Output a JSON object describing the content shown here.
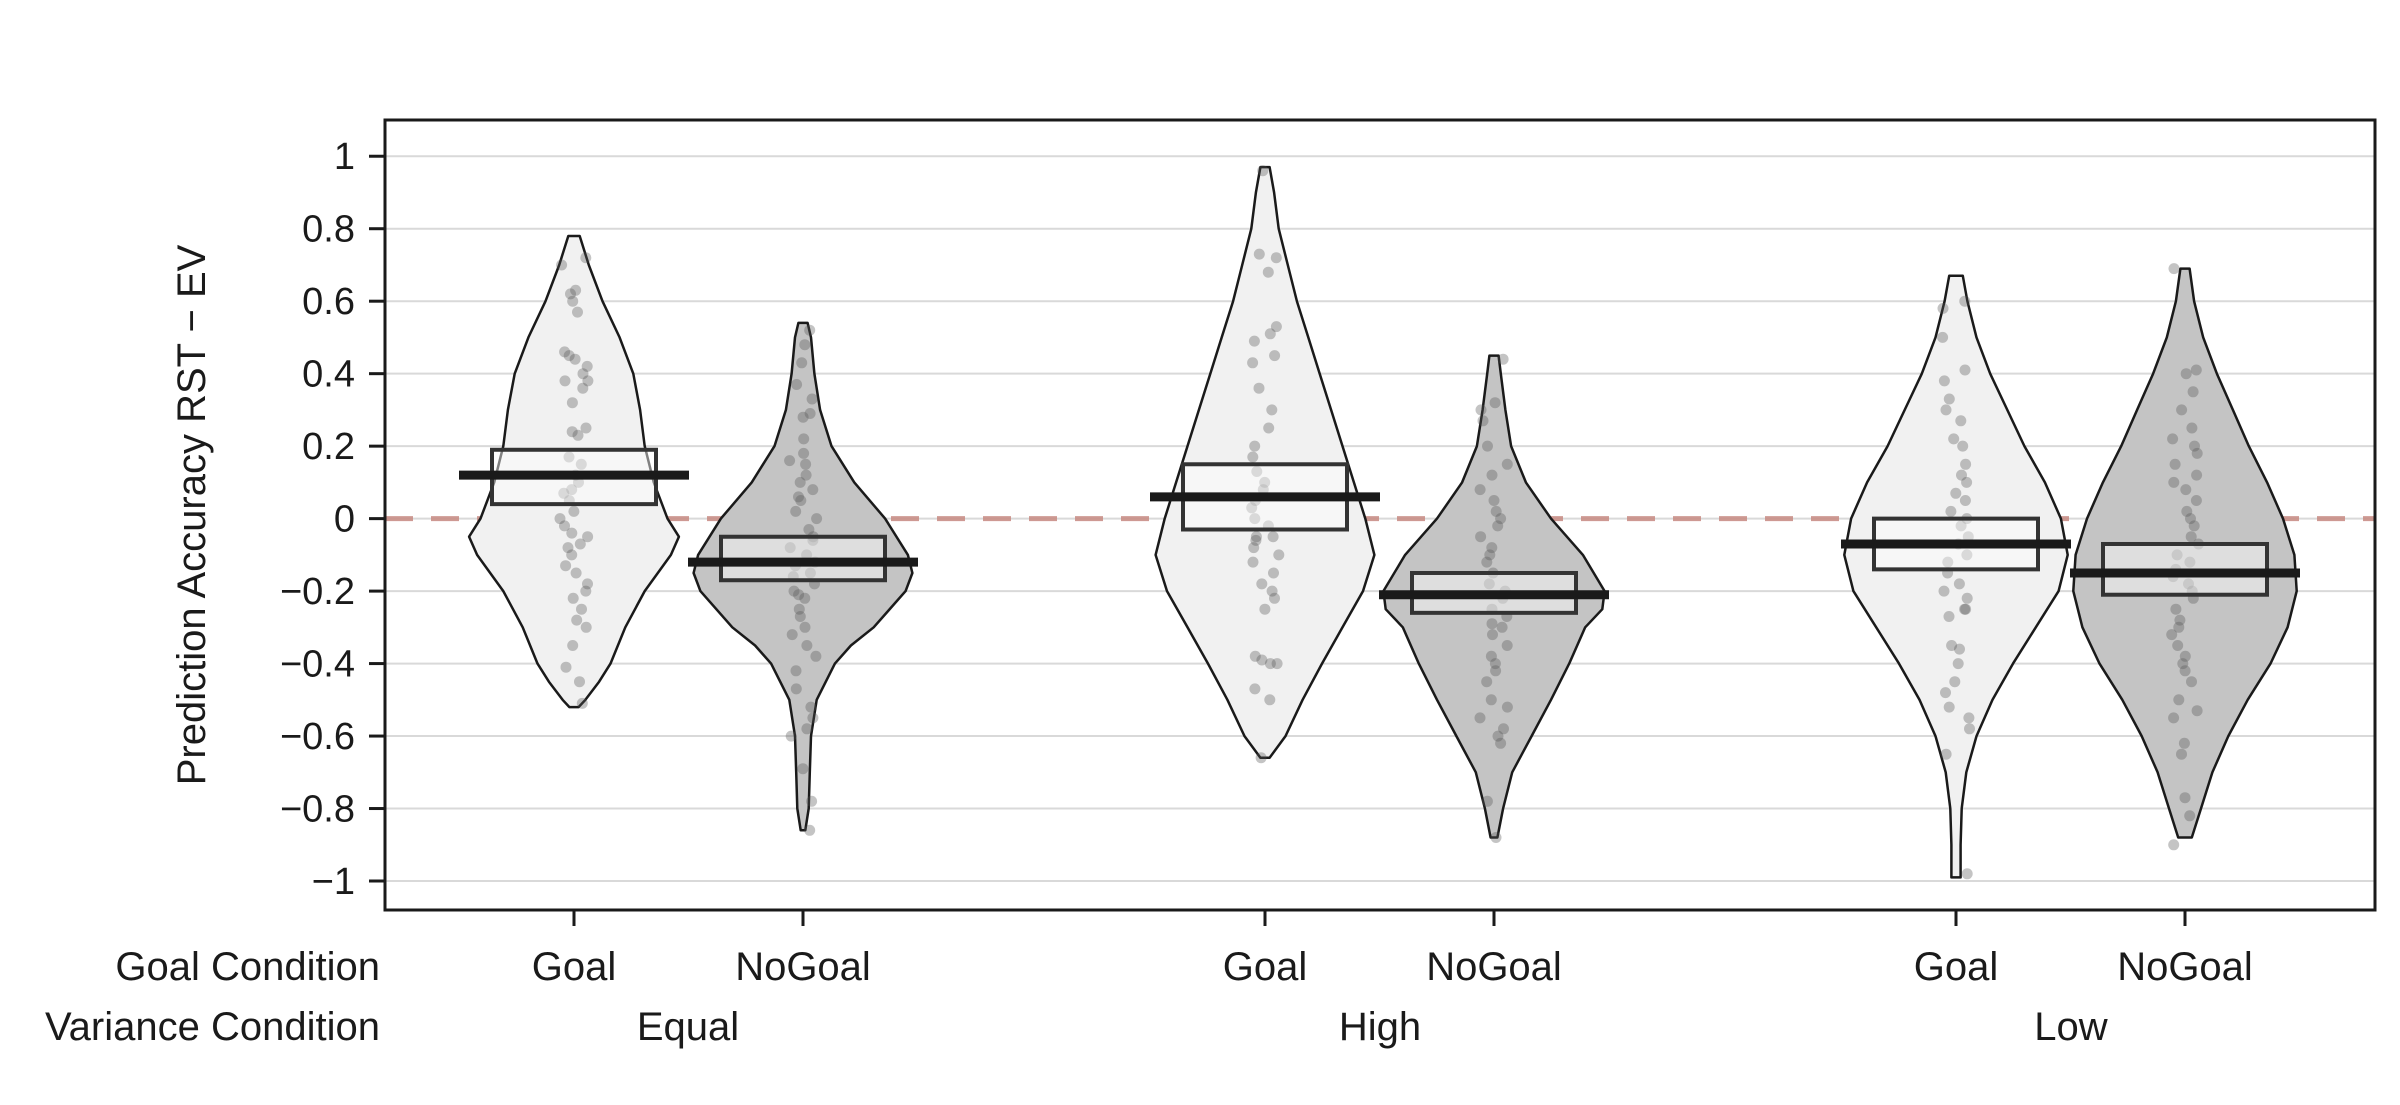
{
  "chart_data": {
    "type": "pirate",
    "ylabel": "Prediction Accuracy RST − EV",
    "ylim": [
      -1.08,
      1.1
    ],
    "yticks": [
      1,
      0.8,
      0.6,
      0.4,
      0.2,
      0,
      -0.2,
      -0.4,
      -0.6,
      -0.8,
      -1
    ],
    "ytick_labels": [
      "1",
      "0.8",
      "0.6",
      "0.4",
      "0.2",
      "0",
      "−0.2",
      "−0.4",
      "−0.6",
      "−0.8",
      "−1"
    ],
    "reference_line": {
      "y": 0,
      "style": "dashed",
      "color": "#c98f88"
    },
    "grid": true,
    "row_labels": {
      "goal": "Goal Condition",
      "variance": "Variance Condition"
    },
    "groups": [
      {
        "variance": "Equal",
        "conditions": [
          {
            "goal": "Goal",
            "fill": "#f1f1f1",
            "mean": 0.12,
            "lower": 0.04,
            "upper": 0.19,
            "density": [
              [
                0.78,
                0.05
              ],
              [
                0.7,
                0.13
              ],
              [
                0.6,
                0.25
              ],
              [
                0.5,
                0.4
              ],
              [
                0.4,
                0.52
              ],
              [
                0.3,
                0.58
              ],
              [
                0.2,
                0.62
              ],
              [
                0.1,
                0.7
              ],
              [
                0.0,
                0.82
              ],
              [
                -0.05,
                0.92
              ],
              [
                -0.1,
                0.85
              ],
              [
                -0.2,
                0.62
              ],
              [
                -0.3,
                0.45
              ],
              [
                -0.4,
                0.32
              ],
              [
                -0.45,
                0.22
              ],
              [
                -0.5,
                0.1
              ],
              [
                -0.52,
                0.04
              ]
            ],
            "points": [
              0.72,
              0.7,
              0.63,
              0.62,
              0.6,
              0.57,
              0.46,
              0.45,
              0.44,
              0.42,
              0.4,
              0.38,
              0.38,
              0.36,
              0.32,
              0.25,
              0.24,
              0.23,
              0.17,
              0.15,
              0.12,
              0.1,
              0.08,
              0.07,
              0.05,
              0.02,
              0.0,
              -0.02,
              -0.04,
              -0.05,
              -0.07,
              -0.08,
              -0.1,
              -0.13,
              -0.15,
              -0.18,
              -0.2,
              -0.22,
              -0.25,
              -0.28,
              -0.3,
              -0.35,
              -0.41,
              -0.45,
              -0.51
            ]
          },
          {
            "goal": "NoGoal",
            "fill": "#c4c4c4",
            "mean": -0.12,
            "lower": -0.17,
            "upper": -0.05,
            "density": [
              [
                0.54,
                0.04
              ],
              [
                0.5,
                0.07
              ],
              [
                0.4,
                0.1
              ],
              [
                0.3,
                0.15
              ],
              [
                0.2,
                0.25
              ],
              [
                0.1,
                0.45
              ],
              [
                0.0,
                0.72
              ],
              [
                -0.1,
                0.92
              ],
              [
                -0.15,
                0.96
              ],
              [
                -0.2,
                0.9
              ],
              [
                -0.3,
                0.62
              ],
              [
                -0.35,
                0.42
              ],
              [
                -0.4,
                0.28
              ],
              [
                -0.5,
                0.12
              ],
              [
                -0.6,
                0.07
              ],
              [
                -0.7,
                0.06
              ],
              [
                -0.8,
                0.05
              ],
              [
                -0.86,
                0.02
              ]
            ],
            "points": [
              0.52,
              0.48,
              0.43,
              0.37,
              0.33,
              0.29,
              0.28,
              0.22,
              0.18,
              0.16,
              0.15,
              0.12,
              0.1,
              0.08,
              0.06,
              0.05,
              0.02,
              0.0,
              -0.03,
              -0.05,
              -0.06,
              -0.08,
              -0.1,
              -0.12,
              -0.13,
              -0.15,
              -0.16,
              -0.18,
              -0.2,
              -0.21,
              -0.22,
              -0.25,
              -0.27,
              -0.3,
              -0.32,
              -0.35,
              -0.38,
              -0.42,
              -0.47,
              -0.52,
              -0.55,
              -0.58,
              -0.6,
              -0.69,
              -0.78,
              -0.86
            ]
          }
        ]
      },
      {
        "variance": "High",
        "conditions": [
          {
            "goal": "Goal",
            "fill": "#f1f1f1",
            "mean": 0.06,
            "lower": -0.03,
            "upper": 0.15,
            "density": [
              [
                0.97,
                0.04
              ],
              [
                0.9,
                0.08
              ],
              [
                0.8,
                0.12
              ],
              [
                0.7,
                0.2
              ],
              [
                0.6,
                0.28
              ],
              [
                0.5,
                0.38
              ],
              [
                0.4,
                0.48
              ],
              [
                0.3,
                0.58
              ],
              [
                0.2,
                0.68
              ],
              [
                0.1,
                0.78
              ],
              [
                0.0,
                0.88
              ],
              [
                -0.1,
                0.96
              ],
              [
                -0.2,
                0.86
              ],
              [
                -0.3,
                0.68
              ],
              [
                -0.4,
                0.5
              ],
              [
                -0.5,
                0.33
              ],
              [
                -0.6,
                0.18
              ],
              [
                -0.66,
                0.04
              ]
            ],
            "points": [
              0.96,
              0.73,
              0.72,
              0.68,
              0.53,
              0.51,
              0.49,
              0.45,
              0.43,
              0.36,
              0.3,
              0.25,
              0.2,
              0.17,
              0.13,
              0.1,
              0.08,
              0.05,
              0.03,
              0.0,
              -0.02,
              -0.05,
              -0.05,
              -0.06,
              -0.08,
              -0.1,
              -0.12,
              -0.15,
              -0.18,
              -0.2,
              -0.22,
              -0.25,
              -0.38,
              -0.39,
              -0.4,
              -0.4,
              -0.47,
              -0.5,
              -0.66
            ]
          },
          {
            "goal": "NoGoal",
            "fill": "#c4c4c4",
            "mean": -0.21,
            "lower": -0.26,
            "upper": -0.15,
            "density": [
              [
                0.45,
                0.04
              ],
              [
                0.4,
                0.06
              ],
              [
                0.3,
                0.1
              ],
              [
                0.2,
                0.15
              ],
              [
                0.1,
                0.28
              ],
              [
                0.0,
                0.5
              ],
              [
                -0.1,
                0.78
              ],
              [
                -0.2,
                0.97
              ],
              [
                -0.25,
                0.95
              ],
              [
                -0.3,
                0.8
              ],
              [
                -0.4,
                0.66
              ],
              [
                -0.5,
                0.5
              ],
              [
                -0.6,
                0.33
              ],
              [
                -0.7,
                0.16
              ],
              [
                -0.8,
                0.08
              ],
              [
                -0.88,
                0.03
              ]
            ],
            "points": [
              0.44,
              0.32,
              0.3,
              0.27,
              0.2,
              0.15,
              0.12,
              0.08,
              0.05,
              0.02,
              0.0,
              -0.02,
              -0.05,
              -0.08,
              -0.1,
              -0.12,
              -0.15,
              -0.18,
              -0.2,
              -0.22,
              -0.25,
              -0.27,
              -0.29,
              -0.3,
              -0.32,
              -0.35,
              -0.38,
              -0.4,
              -0.42,
              -0.45,
              -0.5,
              -0.52,
              -0.55,
              -0.58,
              -0.6,
              -0.62,
              -0.78,
              -0.88
            ]
          }
        ]
      },
      {
        "variance": "Low",
        "conditions": [
          {
            "goal": "Goal",
            "fill": "#f1f1f1",
            "mean": -0.07,
            "lower": -0.14,
            "upper": 0.0,
            "density": [
              [
                0.67,
                0.06
              ],
              [
                0.6,
                0.1
              ],
              [
                0.5,
                0.18
              ],
              [
                0.4,
                0.3
              ],
              [
                0.3,
                0.45
              ],
              [
                0.2,
                0.6
              ],
              [
                0.1,
                0.78
              ],
              [
                0.0,
                0.92
              ],
              [
                -0.1,
                0.98
              ],
              [
                -0.2,
                0.9
              ],
              [
                -0.3,
                0.7
              ],
              [
                -0.4,
                0.5
              ],
              [
                -0.5,
                0.32
              ],
              [
                -0.6,
                0.18
              ],
              [
                -0.7,
                0.09
              ],
              [
                -0.8,
                0.05
              ],
              [
                -0.9,
                0.04
              ],
              [
                -0.99,
                0.04
              ]
            ],
            "points": [
              0.6,
              0.58,
              0.5,
              0.41,
              0.38,
              0.33,
              0.3,
              0.27,
              0.22,
              0.2,
              0.15,
              0.12,
              0.1,
              0.07,
              0.05,
              0.02,
              0.0,
              -0.02,
              -0.05,
              -0.07,
              -0.1,
              -0.12,
              -0.15,
              -0.18,
              -0.2,
              -0.22,
              -0.25,
              -0.25,
              -0.27,
              -0.35,
              -0.36,
              -0.4,
              -0.45,
              -0.48,
              -0.52,
              -0.55,
              -0.58,
              -0.65,
              -0.98
            ]
          },
          {
            "goal": "NoGoal",
            "fill": "#c4c4c4",
            "mean": -0.15,
            "lower": -0.21,
            "upper": -0.07,
            "density": [
              [
                0.69,
                0.04
              ],
              [
                0.6,
                0.08
              ],
              [
                0.5,
                0.16
              ],
              [
                0.4,
                0.28
              ],
              [
                0.3,
                0.42
              ],
              [
                0.2,
                0.56
              ],
              [
                0.1,
                0.72
              ],
              [
                0.0,
                0.86
              ],
              [
                -0.1,
                0.96
              ],
              [
                -0.2,
                0.98
              ],
              [
                -0.3,
                0.9
              ],
              [
                -0.4,
                0.75
              ],
              [
                -0.5,
                0.55
              ],
              [
                -0.6,
                0.38
              ],
              [
                -0.7,
                0.24
              ],
              [
                -0.8,
                0.14
              ],
              [
                -0.88,
                0.06
              ]
            ],
            "points": [
              0.69,
              0.41,
              0.4,
              0.35,
              0.3,
              0.25,
              0.22,
              0.2,
              0.18,
              0.15,
              0.12,
              0.1,
              0.08,
              0.05,
              0.02,
              0.0,
              -0.02,
              -0.05,
              -0.07,
              -0.1,
              -0.12,
              -0.14,
              -0.16,
              -0.18,
              -0.2,
              -0.22,
              -0.25,
              -0.28,
              -0.3,
              -0.32,
              -0.35,
              -0.38,
              -0.4,
              -0.42,
              -0.45,
              -0.5,
              -0.53,
              -0.55,
              -0.62,
              -0.65,
              -0.77,
              -0.82,
              -0.9
            ]
          }
        ]
      }
    ]
  }
}
